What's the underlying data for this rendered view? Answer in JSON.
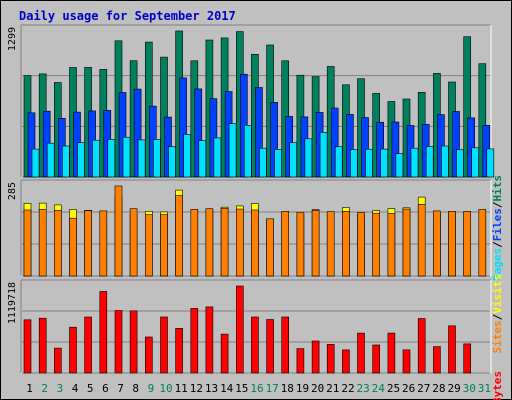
{
  "chart_data": {
    "title": "Daily usage for September 2017",
    "x_categories": [
      "1",
      "2",
      "3",
      "4",
      "5",
      "6",
      "7",
      "8",
      "9",
      "10",
      "11",
      "12",
      "13",
      "14",
      "15",
      "16",
      "17",
      "18",
      "19",
      "20",
      "21",
      "22",
      "23",
      "24",
      "25",
      "26",
      "27",
      "28",
      "29",
      "30",
      "31"
    ],
    "weekend_days": [
      "2",
      "3",
      "9",
      "10",
      "16",
      "17",
      "23",
      "24",
      "30",
      "31"
    ],
    "colors": {
      "background": "#C0C0C0",
      "title": "#0000FF",
      "hits": "#00805C",
      "files": "#0040FF",
      "pages": "#00E0FF",
      "visits": "#FFFF00",
      "sites": "#FF8000",
      "kbytes": "#FF0000",
      "weekday_label": "#000000",
      "weekend_label": "#00805C",
      "max_label": "#000000",
      "gridline": "#808080"
    },
    "panels": [
      {
        "type": "bar",
        "max_label": "1299",
        "legend": [
          {
            "text": "Hits",
            "color": "#00805C"
          },
          {
            "text": "Files",
            "color": "#0040FF"
          },
          {
            "text": "Pages",
            "color": "#00E0FF"
          }
        ],
        "series": [
          {
            "name": "Hits",
            "values": [
              902,
              917,
              841,
              974,
              975,
              958,
              1212,
              1035,
              1200,
              1067,
              1299,
              1034,
              1219,
              1238,
              1294,
              1092,
              1174,
              1034,
              906,
              893,
              983,
              820,
              875,
              744,
              672,
              694,
              754,
              922,
              845,
              1248,
              1008
            ]
          },
          {
            "name": "Files",
            "values": [
              571,
              585,
              522,
              577,
              588,
              593,
              753,
              782,
              631,
              533,
              882,
              784,
              697,
              761,
              915,
              796,
              664,
              539,
              535,
              575,
              614,
              557,
              529,
              488,
              489,
              458,
              469,
              555,
              583,
              526,
              460
            ]
          },
          {
            "name": "Pages",
            "values": [
              248,
              301,
              276,
              305,
              327,
              334,
              354,
              330,
              334,
              270,
              379,
              323,
              348,
              474,
              460,
              256,
              246,
              306,
              340,
              398,
              270,
              244,
              247,
              248,
              208,
              256,
              272,
              276,
              244,
              260,
              250
            ]
          }
        ]
      },
      {
        "type": "bar",
        "max_label": "285",
        "legend": [
          {
            "text": "Visits",
            "color": "#FFFF00"
          },
          {
            "text": "Sites",
            "color": "#FF8000"
          }
        ],
        "series": [
          {
            "name": "Visits",
            "values": [
              230,
              231,
              225,
              211,
              208,
              197,
              249,
              197,
              205,
              203,
              272,
              210,
              210,
              218,
              222,
              229,
              181,
              200,
              195,
              210,
              196,
              217,
              196,
              207,
              213,
              216,
              250,
              199,
              202,
              199,
              188
            ]
          },
          {
            "name": "Sites",
            "values": [
              209,
              211,
              208,
              183,
              207,
              206,
              285,
              213,
              194,
              194,
              255,
              211,
              213,
              214,
              212,
              209,
              181,
              205,
              202,
              208,
              204,
              205,
              201,
              199,
              198,
              212,
              227,
              206,
              205,
              205,
              211
            ]
          }
        ]
      },
      {
        "type": "bar",
        "max_label": "1119718",
        "legend": [
          {
            "text": "KBytes",
            "color": "#FF0000"
          }
        ],
        "series": [
          {
            "name": "KBytes",
            "values": [
              684600,
              705200,
              320000,
              589000,
              721000,
              1049000,
              804000,
              800000,
              463000,
              721000,
              575000,
              831000,
              851000,
              501000,
              1119718,
              721000,
              689000,
              721000,
              314000,
              412000,
              370000,
              297000,
              514000,
              361000,
              514000,
              298000,
              702000,
              340000,
              607000,
              375000,
              0
            ]
          }
        ]
      }
    ]
  }
}
